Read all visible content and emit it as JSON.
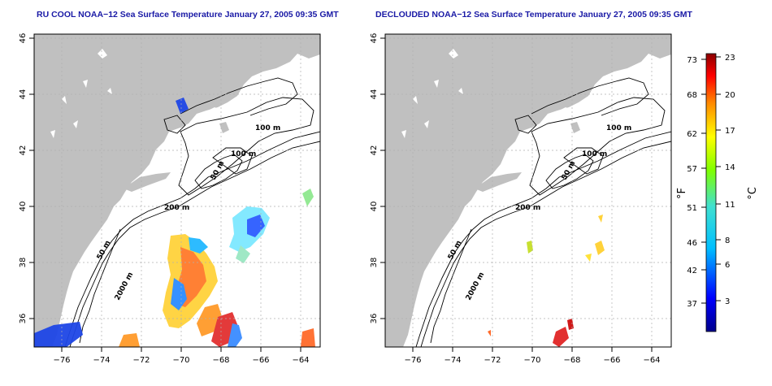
{
  "panels": [
    {
      "title": "RU COOL NOAA−12 Sea Surface Temperature January 27, 2005 09:35 GMT",
      "x_ticks": [
        "−76",
        "−74",
        "−72",
        "−70",
        "−68",
        "−66",
        "−64"
      ],
      "y_ticks": [
        "46",
        "44",
        "42",
        "40",
        "38",
        "36"
      ],
      "contours": [
        "100 m",
        "100 m",
        "50 m",
        "200 m",
        "50 m",
        "2000 m"
      ]
    },
    {
      "title": "DECLOUDED NOAA−12 Sea Surface Temperature January 27, 2005 09:35 GMT",
      "x_ticks": [
        "−76",
        "−74",
        "−72",
        "−70",
        "−68",
        "−66",
        "−64"
      ],
      "y_ticks": [
        "46",
        "44",
        "42",
        "40",
        "38",
        "36"
      ],
      "contours": [
        "100 m",
        "100 m",
        "50 m",
        "200 m",
        "50 m",
        "2000 m"
      ]
    }
  ],
  "colorbar": {
    "f_label": "°F",
    "c_label": "°C",
    "f_ticks": [
      "73",
      "68",
      "62",
      "57",
      "51",
      "46",
      "42",
      "37"
    ],
    "c_ticks": [
      "23",
      "20",
      "17",
      "14",
      "11",
      "8",
      "6",
      "3"
    ]
  },
  "colors": {
    "land": "#c0c0c0",
    "title": "#1a1aa6",
    "grid": "#b0b0b0"
  }
}
